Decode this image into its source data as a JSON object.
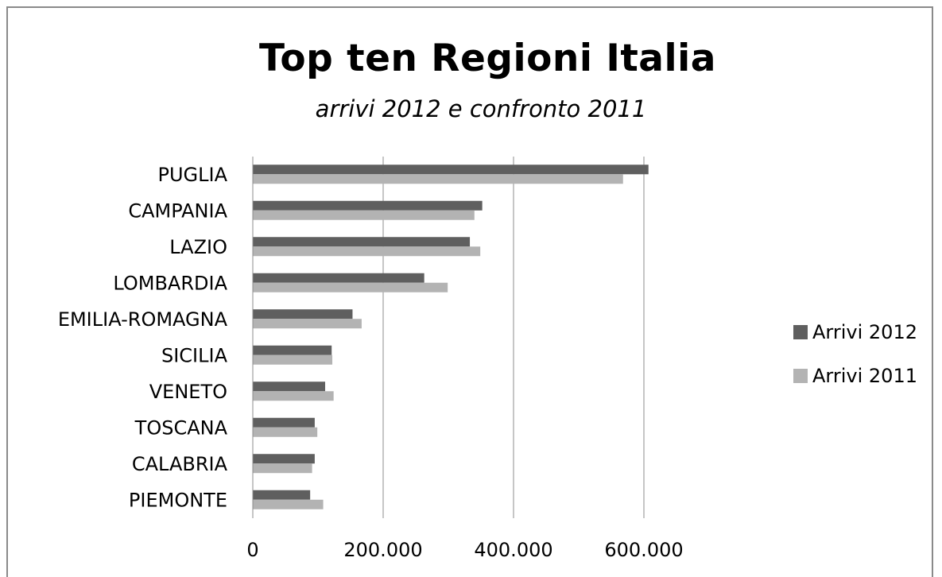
{
  "chart_data": {
    "type": "bar",
    "orientation": "horizontal",
    "title": "Top ten Regioni Italia",
    "subtitle": "arrivi 2012 e confronto 2011",
    "xlabel": "",
    "ylabel": "",
    "xlim": [
      0,
      700000
    ],
    "x_ticks": [
      0,
      200000,
      400000,
      600000
    ],
    "x_tick_labels": [
      "0",
      "200.000",
      "400.000",
      "600.000"
    ],
    "grid": true,
    "legend_position": "right",
    "categories": [
      "PUGLIA",
      "CAMPANIA",
      "LAZIO",
      "LOMBARDIA",
      "EMILIA-ROMAGNA",
      "SICILIA",
      "VENETO",
      "TOSCANA",
      "CALABRIA",
      "PIEMONTE"
    ],
    "series": [
      {
        "name": "Arrivi 2012",
        "color": "#5f5f5f",
        "values": [
          607000,
          352000,
          333000,
          263000,
          153000,
          121000,
          111000,
          95000,
          95000,
          88000
        ]
      },
      {
        "name": "Arrivi 2011",
        "color": "#b3b3b3",
        "values": [
          568000,
          340000,
          349000,
          299000,
          167000,
          122000,
          124000,
          99000,
          91000,
          108000
        ]
      }
    ]
  }
}
